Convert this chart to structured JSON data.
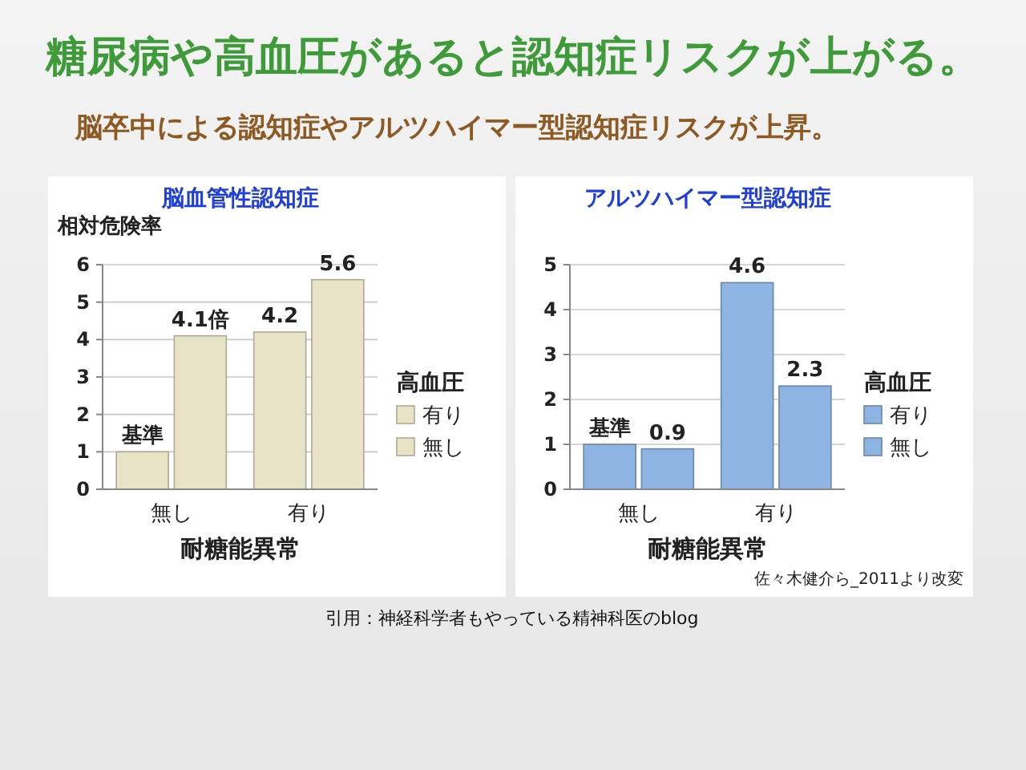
{
  "chart_data": [
    {
      "type": "other",
      "title": "糖尿病や高血圧があると認知症リスクが上がる。",
      "subtitle": "脳卒中による認知症やアルツハイマー型認知症リスクが上昇。",
      "annotations": [
        "引用：神経科学者もやっている精神科医のblog"
      ]
    },
    {
      "type": "bar",
      "title": "脳血管性認知症",
      "ylabel": "相対危険率",
      "xlabel": "耐糖能異常",
      "legend_title": "高血圧",
      "categories": [
        "無し",
        "有り"
      ],
      "series": [
        {
          "name": "無し",
          "color": "#e8e2c6",
          "values": [
            1,
            4.2
          ],
          "value_labels": [
            "基準",
            "4.2"
          ]
        },
        {
          "name": "有り",
          "color": "#e8e2c6",
          "values": [
            4.1,
            5.6
          ],
          "value_labels": [
            "4.1倍",
            "5.6"
          ]
        }
      ],
      "ylim": [
        0,
        6
      ],
      "yticks": [
        0,
        1,
        2,
        3,
        4,
        5,
        6
      ],
      "grid": "y",
      "legend": "right"
    },
    {
      "type": "bar",
      "title": "アルツハイマー型認知症",
      "xlabel": "耐糖能異常",
      "legend_title": "高血圧",
      "categories": [
        "無し",
        "有り"
      ],
      "series": [
        {
          "name": "無し",
          "color": "#8db4e2",
          "values": [
            1,
            4.6
          ],
          "value_labels": [
            "基準",
            "4.6"
          ]
        },
        {
          "name": "有り",
          "color": "#8db4e2",
          "values": [
            0.9,
            2.3
          ],
          "value_labels": [
            "0.9",
            "2.3"
          ]
        }
      ],
      "ylim": [
        0,
        5
      ],
      "yticks": [
        0,
        1,
        2,
        3,
        4,
        5
      ],
      "grid": "y",
      "legend": "right",
      "annotations": [
        "佐々木健介ら_2011より改変"
      ]
    }
  ]
}
